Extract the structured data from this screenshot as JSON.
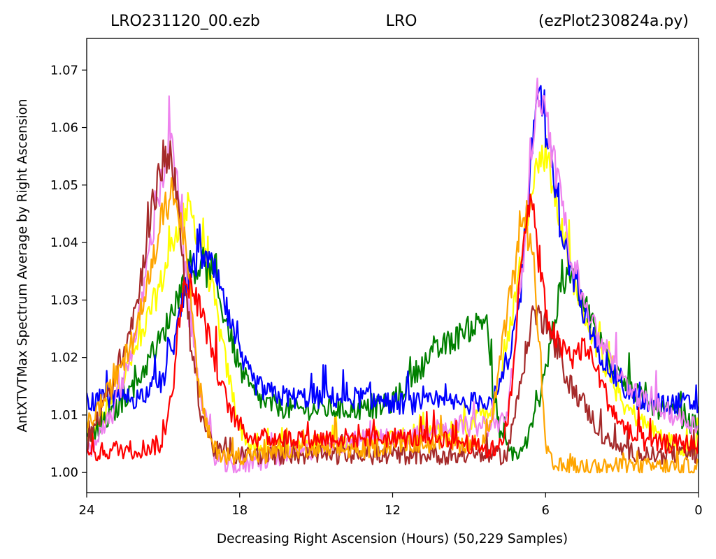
{
  "titles": {
    "left": "LRO231120_00.ezb",
    "center": "LRO",
    "right": "(ezPlot230824a.py)"
  },
  "chart_data": {
    "type": "line",
    "xlabel": "Decreasing Right Ascension (Hours) (50,229 Samples)",
    "ylabel": "AntXTVTMax Spectrum Average by Right Ascension",
    "xlim": [
      24,
      0
    ],
    "ylim": [
      0.9965,
      1.0755
    ],
    "x_ticks": [
      24,
      18,
      12,
      6,
      0
    ],
    "x_tick_labels": [
      "24",
      "18",
      "12",
      "6",
      "0"
    ],
    "y_ticks": [
      1.0,
      1.01,
      1.02,
      1.03,
      1.04,
      1.05,
      1.06,
      1.07
    ],
    "y_tick_labels": [
      "1.00",
      "1.01",
      "1.02",
      "1.03",
      "1.04",
      "1.05",
      "1.06",
      "1.07"
    ],
    "grid": false,
    "legend": "none",
    "x_axis_inverted": true,
    "series": [
      {
        "color": "#ffff00",
        "baseline": 1.005,
        "noise": 0.004,
        "x": [
          24,
          23,
          22,
          21,
          20.5,
          20,
          19.5,
          19,
          18.5,
          18,
          17.5,
          17,
          16,
          15,
          14,
          13,
          12,
          11,
          10,
          9,
          8,
          7.5,
          7,
          6.5,
          6,
          5.5,
          5,
          4.5,
          4,
          3.5,
          3,
          2,
          1,
          0
        ],
        "y": [
          1.005,
          1.012,
          1.022,
          1.034,
          1.042,
          1.046,
          1.04,
          1.03,
          1.018,
          1.008,
          1.004,
          1.004,
          1.004,
          1.005,
          1.005,
          1.006,
          1.006,
          1.006,
          1.007,
          1.008,
          1.012,
          1.022,
          1.036,
          1.052,
          1.056,
          1.045,
          1.035,
          1.028,
          1.022,
          1.017,
          1.012,
          1.008,
          1.005,
          1.004
        ]
      },
      {
        "color": "#008000",
        "baseline": 1.008,
        "noise": 0.004,
        "x": [
          24,
          23,
          22,
          21,
          20.5,
          20,
          19.5,
          19,
          18.5,
          18,
          17.5,
          17,
          16,
          15,
          14,
          13,
          12,
          11,
          10,
          9,
          8.3,
          8,
          7.5,
          7,
          6.5,
          6,
          5.5,
          5,
          4.5,
          4,
          3.5,
          3,
          2.5,
          2,
          1,
          0
        ],
        "y": [
          1.006,
          1.01,
          1.016,
          1.024,
          1.03,
          1.035,
          1.036,
          1.033,
          1.026,
          1.018,
          1.014,
          1.012,
          1.011,
          1.011,
          1.011,
          1.011,
          1.012,
          1.018,
          1.022,
          1.025,
          1.027,
          1.01,
          1.004,
          1.003,
          1.008,
          1.018,
          1.03,
          1.035,
          1.03,
          1.024,
          1.02,
          1.017,
          1.014,
          1.012,
          1.01,
          1.008
        ]
      },
      {
        "color": "#0000ff",
        "baseline": 1.012,
        "noise": 0.004,
        "x": [
          24,
          23,
          22,
          21,
          20.5,
          20,
          19.5,
          19,
          18.5,
          18,
          17.5,
          17,
          16,
          15,
          14,
          13,
          12,
          11,
          10,
          9,
          8,
          7.5,
          7,
          6.7,
          6.3,
          6,
          5.5,
          5,
          4.5,
          4,
          3.5,
          3,
          2.5,
          2,
          1,
          0
        ],
        "y": [
          1.012,
          1.013,
          1.013,
          1.016,
          1.024,
          1.034,
          1.038,
          1.035,
          1.028,
          1.02,
          1.016,
          1.014,
          1.013,
          1.013,
          1.013,
          1.013,
          1.012,
          1.012,
          1.012,
          1.012,
          1.013,
          1.018,
          1.03,
          1.048,
          1.068,
          1.06,
          1.045,
          1.035,
          1.028,
          1.022,
          1.018,
          1.015,
          1.013,
          1.012,
          1.012,
          1.012
        ]
      },
      {
        "color": "#ee82ee",
        "baseline": 1.002,
        "noise": 0.004,
        "x": [
          24,
          23,
          22,
          21.5,
          21,
          20.7,
          20.4,
          20,
          19.5,
          19,
          18.5,
          18,
          17,
          16,
          15,
          14,
          13,
          12,
          11,
          10,
          9,
          8,
          7.5,
          7,
          6.6,
          6.3,
          6,
          5.5,
          5,
          4.5,
          4,
          3.5,
          3,
          2.5,
          2,
          1,
          0
        ],
        "y": [
          1.003,
          1.01,
          1.025,
          1.04,
          1.052,
          1.058,
          1.048,
          1.028,
          1.012,
          1.003,
          1.001,
          1.001,
          1.002,
          1.003,
          1.004,
          1.005,
          1.006,
          1.006,
          1.007,
          1.008,
          1.008,
          1.008,
          1.01,
          1.03,
          1.055,
          1.066,
          1.062,
          1.05,
          1.038,
          1.03,
          1.024,
          1.02,
          1.016,
          1.014,
          1.012,
          1.01,
          1.008
        ]
      },
      {
        "color": "#a52a2a",
        "baseline": 1.004,
        "noise": 0.004,
        "x": [
          24,
          23,
          22,
          21.5,
          21,
          20.7,
          20.4,
          20,
          19.5,
          19,
          18.5,
          18,
          17,
          16,
          15,
          14,
          13,
          12,
          11,
          10,
          9,
          8,
          7.5,
          7,
          6.5,
          6,
          5.5,
          5,
          4.5,
          4,
          3.5,
          3,
          2,
          1,
          0
        ],
        "y": [
          1.005,
          1.015,
          1.03,
          1.045,
          1.054,
          1.056,
          1.045,
          1.025,
          1.01,
          1.004,
          1.003,
          1.003,
          1.003,
          1.003,
          1.003,
          1.003,
          1.003,
          1.003,
          1.003,
          1.003,
          1.003,
          1.003,
          1.003,
          1.015,
          1.028,
          1.026,
          1.02,
          1.015,
          1.012,
          1.008,
          1.005,
          1.004,
          1.003,
          1.003,
          1.003
        ]
      },
      {
        "color": "#ffa500",
        "baseline": 1.003,
        "noise": 0.004,
        "x": [
          24,
          23,
          22,
          21.5,
          21,
          20.5,
          20,
          19.7,
          19.3,
          19,
          18.5,
          18,
          17.5,
          17,
          16,
          15,
          14,
          13,
          12,
          11,
          10,
          9,
          8.5,
          8,
          7.5,
          7,
          6.8,
          6.5,
          6.2,
          6,
          5.7,
          5,
          4,
          3,
          2,
          1,
          0
        ],
        "y": [
          1.008,
          1.015,
          1.025,
          1.035,
          1.045,
          1.05,
          1.035,
          1.018,
          1.008,
          1.004,
          1.003,
          1.003,
          1.003,
          1.003,
          1.004,
          1.004,
          1.004,
          1.004,
          1.005,
          1.005,
          1.005,
          1.005,
          1.005,
          1.012,
          1.028,
          1.04,
          1.043,
          1.038,
          1.02,
          1.004,
          1.001,
          1.001,
          1.001,
          1.001,
          1.001,
          1.001,
          1.001
        ]
      },
      {
        "color": "#ff0000",
        "baseline": 1.004,
        "noise": 0.004,
        "x": [
          24,
          23,
          22,
          21,
          20.6,
          20.3,
          20,
          19.5,
          19,
          18.5,
          18,
          17.5,
          17,
          16,
          15,
          14,
          13,
          12,
          11,
          10,
          9,
          8.5,
          8,
          7.5,
          7.2,
          7,
          6.7,
          6.5,
          6.2,
          6,
          5.5,
          5,
          4.5,
          4,
          3.5,
          3,
          2.5,
          2,
          1,
          0
        ],
        "y": [
          1.003,
          1.004,
          1.004,
          1.005,
          1.016,
          1.03,
          1.033,
          1.028,
          1.02,
          1.012,
          1.008,
          1.006,
          1.006,
          1.006,
          1.006,
          1.006,
          1.006,
          1.006,
          1.006,
          1.006,
          1.005,
          1.004,
          1.004,
          1.008,
          1.02,
          1.035,
          1.048,
          1.045,
          1.035,
          1.028,
          1.022,
          1.02,
          1.022,
          1.018,
          1.012,
          1.008,
          1.006,
          1.005,
          1.005,
          1.005
        ]
      }
    ]
  }
}
